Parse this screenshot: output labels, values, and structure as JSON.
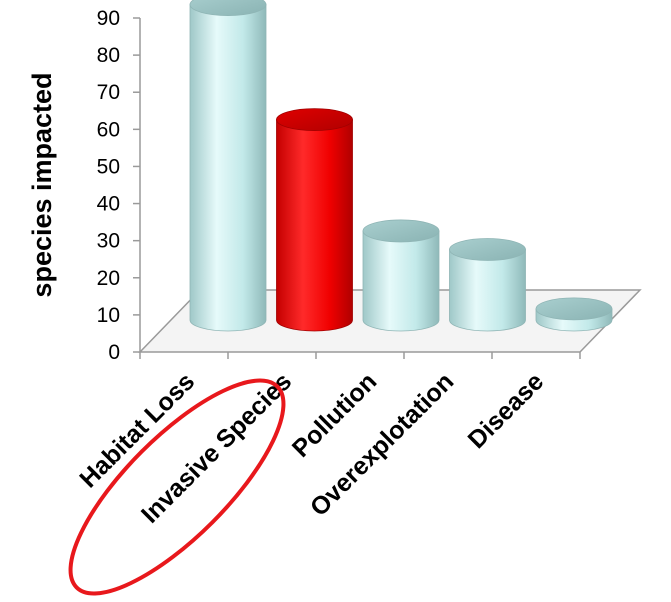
{
  "chart_data": {
    "type": "bar",
    "style": "3d-cylinder",
    "categories": [
      "Habitat Loss",
      "Invasive Species",
      "Pollution",
      "Overexplotation",
      "Disease"
    ],
    "values": [
      85,
      54,
      24,
      19,
      3
    ],
    "colors": [
      "#c6ecec",
      "#ff0000",
      "#c6ecec",
      "#c6ecec",
      "#c6ecec"
    ],
    "title": "",
    "xlabel": "",
    "ylabel": "species impacted",
    "ylim": [
      0,
      90
    ],
    "yticks": [
      0,
      10,
      20,
      30,
      40,
      50,
      60,
      70,
      80,
      90
    ],
    "highlight": {
      "category": "Invasive Species",
      "shape": "ellipse",
      "color": "#e8181c"
    },
    "grid": false
  }
}
